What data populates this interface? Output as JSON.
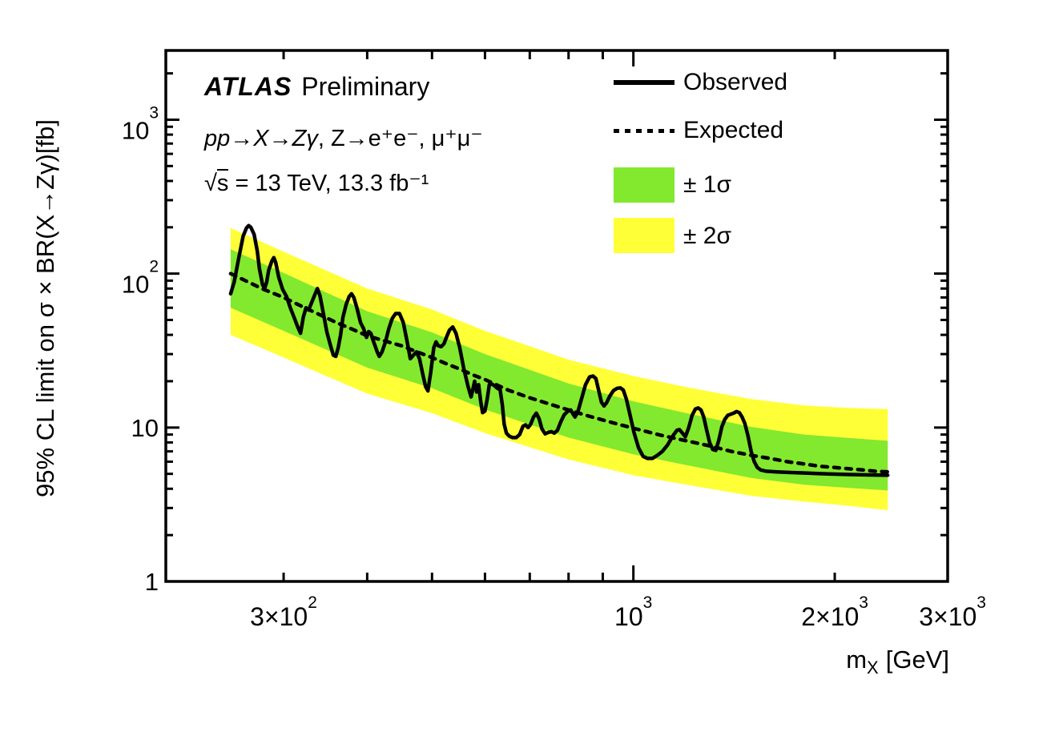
{
  "figure": {
    "header": {
      "experiment": "ATLAS",
      "status": "Preliminary",
      "process_italic": "pp→X→Zγ",
      "process_rest": ", Z→e⁺e⁻, μ⁺μ⁻",
      "sqrt_symbol": "√",
      "sqrt_arg": "s",
      "energy_lumi": " = 13 TeV, 13.3 fb⁻¹"
    },
    "legend": [
      {
        "swatch": "solid-line",
        "label": "Observed"
      },
      {
        "swatch": "dashed-line",
        "label": "Expected"
      },
      {
        "swatch": "green-box",
        "label": "± 1σ"
      },
      {
        "swatch": "yellow-box",
        "label": "± 2σ"
      }
    ],
    "x_axis": {
      "base": "m",
      "sub": "X",
      "unit": "[GeV]"
    },
    "colors": {
      "observed": "#000000",
      "expected": "#000000",
      "band_1sigma": "#82E92F",
      "band_2sigma": "#FFFF38",
      "frame": "#000000",
      "background": "#FFFFFF"
    }
  },
  "chart_data": {
    "type": "line",
    "title": "",
    "xlabel": "m_X [GeV]",
    "ylabel": "95% CL limit on σ × BR(X→Zγ)[fb]",
    "x_scale": "log",
    "y_scale": "log",
    "xlim": [
      200,
      2950
    ],
    "ylim": [
      1,
      2818
    ],
    "grid": false,
    "legend_position": "top-right",
    "x_ticks": [
      {
        "value": 300,
        "mantissa": "3×10",
        "exp": "2"
      },
      {
        "value": 1000,
        "mantissa": "10",
        "exp": "3"
      },
      {
        "value": 2000,
        "mantissa": "2×10",
        "exp": "3"
      },
      {
        "value": 3000,
        "mantissa": "3×10",
        "exp": "3"
      }
    ],
    "y_ticks": [
      {
        "value": 1,
        "mantissa": "1",
        "exp": ""
      },
      {
        "value": 10,
        "mantissa": "10",
        "exp": ""
      },
      {
        "value": 100,
        "mantissa": "10",
        "exp": "2"
      },
      {
        "value": 1000,
        "mantissa": "10",
        "exp": "3"
      }
    ],
    "bands": [
      {
        "name": "± 2σ",
        "sigma": 2,
        "color": "#FFFF38",
        "x": [
          250,
          300,
          400,
          500,
          600,
          800,
          1000,
          1200,
          1500,
          1800,
          2100,
          2400
        ],
        "upper": [
          198,
          139,
          80,
          58.5,
          42.5,
          27.6,
          21.6,
          18.3,
          15.3,
          13.9,
          13.4,
          13.2
        ],
        "lower": [
          40,
          28.5,
          16.6,
          12.4,
          9.2,
          6.2,
          4.9,
          4.25,
          3.6,
          3.3,
          3.1,
          2.9
        ]
      },
      {
        "name": "± 1σ",
        "sigma": 1,
        "color": "#82E92F",
        "x": [
          250,
          300,
          400,
          500,
          600,
          800,
          1000,
          1200,
          1500,
          1800,
          2100,
          2400
        ],
        "upper": [
          144,
          101,
          57,
          41.5,
          30,
          19.3,
          14.8,
          12.4,
          10.1,
          9.0,
          8.55,
          8.2
        ],
        "lower": [
          60,
          42.5,
          24.5,
          18,
          13.1,
          8.6,
          6.7,
          5.7,
          4.7,
          4.25,
          4.05,
          3.9
        ]
      }
    ],
    "series": [
      {
        "name": "Expected",
        "style": "dashed",
        "color": "#000000",
        "points": [
          [
            250,
            100
          ],
          [
            280,
            79
          ],
          [
            300,
            70
          ],
          [
            320,
            61
          ],
          [
            340,
            54
          ],
          [
            360,
            48
          ],
          [
            380,
            43.5
          ],
          [
            400,
            39.5
          ],
          [
            425,
            36.5
          ],
          [
            450,
            34
          ],
          [
            475,
            31
          ],
          [
            500,
            28.5
          ],
          [
            525,
            26
          ],
          [
            550,
            24
          ],
          [
            575,
            22
          ],
          [
            600,
            20.5
          ],
          [
            650,
            17.5
          ],
          [
            700,
            15.6
          ],
          [
            750,
            14.2
          ],
          [
            800,
            13
          ],
          [
            850,
            12
          ],
          [
            900,
            11.2
          ],
          [
            950,
            10.5
          ],
          [
            1000,
            9.9
          ],
          [
            1100,
            8.9
          ],
          [
            1200,
            8.2
          ],
          [
            1300,
            7.6
          ],
          [
            1400,
            7
          ],
          [
            1500,
            6.6
          ],
          [
            1600,
            6.3
          ],
          [
            1700,
            6
          ],
          [
            1800,
            5.8
          ],
          [
            1900,
            5.6
          ],
          [
            2000,
            5.5
          ],
          [
            2100,
            5.4
          ],
          [
            2200,
            5.3
          ],
          [
            2300,
            5.2
          ],
          [
            2400,
            5.15
          ]
        ]
      },
      {
        "name": "Observed",
        "style": "solid",
        "color": "#000000",
        "points": [
          [
            250,
            74
          ],
          [
            253,
            88
          ],
          [
            257,
            125
          ],
          [
            261,
            175
          ],
          [
            264,
            198
          ],
          [
            266,
            205
          ],
          [
            268,
            200
          ],
          [
            271,
            180
          ],
          [
            274,
            140
          ],
          [
            276,
            108
          ],
          [
            279,
            85
          ],
          [
            281,
            80
          ],
          [
            283,
            88
          ],
          [
            285,
            105
          ],
          [
            288,
            120
          ],
          [
            290,
            127
          ],
          [
            292,
            118
          ],
          [
            295,
            95
          ],
          [
            299,
            79
          ],
          [
            303,
            71
          ],
          [
            307,
            60
          ],
          [
            311,
            52
          ],
          [
            315,
            45
          ],
          [
            318,
            41
          ],
          [
            321,
            52
          ],
          [
            324,
            60
          ],
          [
            327,
            58
          ],
          [
            330,
            64
          ],
          [
            334,
            73
          ],
          [
            337,
            80
          ],
          [
            340,
            72
          ],
          [
            344,
            55
          ],
          [
            348,
            42
          ],
          [
            352,
            35
          ],
          [
            356,
            29.5
          ],
          [
            359,
            29
          ],
          [
            362,
            33
          ],
          [
            365,
            40
          ],
          [
            368,
            52
          ],
          [
            372,
            63
          ],
          [
            376,
            71
          ],
          [
            379,
            74
          ],
          [
            382,
            70
          ],
          [
            386,
            60
          ],
          [
            391,
            48
          ],
          [
            395,
            44
          ],
          [
            399,
            38.5
          ],
          [
            402,
            42
          ],
          [
            405,
            41
          ],
          [
            408,
            37
          ],
          [
            411,
            34
          ],
          [
            414,
            31
          ],
          [
            417,
            29
          ],
          [
            421,
            31
          ],
          [
            426,
            36
          ],
          [
            431,
            44
          ],
          [
            436,
            51
          ],
          [
            441,
            55
          ],
          [
            447,
            55
          ],
          [
            453,
            48
          ],
          [
            459,
            36
          ],
          [
            464,
            28
          ],
          [
            469,
            29.5
          ],
          [
            474,
            31
          ],
          [
            479,
            28
          ],
          [
            484,
            22.5
          ],
          [
            489,
            18.5
          ],
          [
            493,
            17.3
          ],
          [
            498,
            23
          ],
          [
            503,
            33
          ],
          [
            507,
            36
          ],
          [
            511,
            34
          ],
          [
            516,
            33.5
          ],
          [
            521,
            35
          ],
          [
            526,
            39
          ],
          [
            531,
            43
          ],
          [
            537,
            45
          ],
          [
            543,
            41
          ],
          [
            550,
            33
          ],
          [
            558,
            24
          ],
          [
            566,
            18.5
          ],
          [
            572,
            15.8
          ],
          [
            576,
            18
          ],
          [
            579,
            20
          ],
          [
            583,
            17
          ],
          [
            587,
            19
          ],
          [
            591,
            15
          ],
          [
            595,
            12.5
          ],
          [
            600,
            12.8
          ],
          [
            605,
            15.5
          ],
          [
            609,
            19
          ],
          [
            614,
            19.2
          ],
          [
            620,
            18.7
          ],
          [
            626,
            18
          ],
          [
            632,
            17.6
          ],
          [
            637,
            14
          ],
          [
            641,
            10.5
          ],
          [
            646,
            9.2
          ],
          [
            652,
            8.8
          ],
          [
            660,
            8.6
          ],
          [
            668,
            8.6
          ],
          [
            676,
            9
          ],
          [
            684,
            10.2
          ],
          [
            690,
            10.4
          ],
          [
            696,
            10
          ],
          [
            702,
            10.5
          ],
          [
            709,
            11.7
          ],
          [
            716,
            12.4
          ],
          [
            723,
            11.4
          ],
          [
            730,
            9.8
          ],
          [
            738,
            9.1
          ],
          [
            746,
            9.3
          ],
          [
            754,
            9.4
          ],
          [
            762,
            9.2
          ],
          [
            770,
            9.6
          ],
          [
            779,
            10.9
          ],
          [
            788,
            12.1
          ],
          [
            797,
            12.7
          ],
          [
            806,
            13
          ],
          [
            812,
            12.3
          ],
          [
            818,
            11.7
          ],
          [
            826,
            12.6
          ],
          [
            836,
            15.2
          ],
          [
            848,
            19
          ],
          [
            860,
            21.3
          ],
          [
            870,
            21.6
          ],
          [
            879,
            20.8
          ],
          [
            888,
            17.2
          ],
          [
            896,
            14.6
          ],
          [
            904,
            13.8
          ],
          [
            912,
            14.5
          ],
          [
            922,
            16
          ],
          [
            934,
            17.4
          ],
          [
            946,
            18
          ],
          [
            956,
            18.1
          ],
          [
            966,
            17.5
          ],
          [
            976,
            15.3
          ],
          [
            988,
            12.2
          ],
          [
            1002,
            9.3
          ],
          [
            1018,
            7.4
          ],
          [
            1034,
            6.5
          ],
          [
            1050,
            6.3
          ],
          [
            1068,
            6.3
          ],
          [
            1086,
            6.6
          ],
          [
            1105,
            7
          ],
          [
            1125,
            7.7
          ],
          [
            1145,
            8.8
          ],
          [
            1162,
            9.6
          ],
          [
            1172,
            9.7
          ],
          [
            1184,
            9.2
          ],
          [
            1196,
            8.7
          ],
          [
            1210,
            10
          ],
          [
            1224,
            12
          ],
          [
            1238,
            13.2
          ],
          [
            1250,
            13.4
          ],
          [
            1262,
            13
          ],
          [
            1274,
            11.7
          ],
          [
            1287,
            9.6
          ],
          [
            1300,
            8
          ],
          [
            1314,
            7.2
          ],
          [
            1328,
            7.1
          ],
          [
            1342,
            8.3
          ],
          [
            1356,
            10.1
          ],
          [
            1370,
            11.3
          ],
          [
            1384,
            12
          ],
          [
            1398,
            12.2
          ],
          [
            1412,
            12.4
          ],
          [
            1426,
            12.7
          ],
          [
            1440,
            12.5
          ],
          [
            1454,
            11.7
          ],
          [
            1468,
            10.6
          ],
          [
            1484,
            8.8
          ],
          [
            1500,
            7
          ],
          [
            1516,
            6
          ],
          [
            1532,
            5.5
          ],
          [
            1550,
            5.3
          ],
          [
            1580,
            5.2
          ],
          [
            1640,
            5.15
          ],
          [
            1720,
            5.1
          ],
          [
            1820,
            5.05
          ],
          [
            1950,
            5
          ],
          [
            2100,
            4.95
          ],
          [
            2250,
            4.92
          ],
          [
            2400,
            4.9
          ]
        ]
      }
    ]
  }
}
